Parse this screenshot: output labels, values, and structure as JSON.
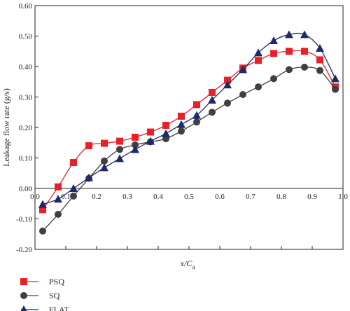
{
  "chart_data": {
    "type": "line",
    "xlabel": "x/C",
    "xlabel_subscript": "a",
    "ylabel": "Leakage flow rate (g/s)",
    "xlim": [
      0.0,
      1.0
    ],
    "ylim": [
      -0.2,
      0.6
    ],
    "xticks": [
      "0.0",
      "0.1",
      "0.2",
      "0.3",
      "0.4",
      "0.5",
      "0.6",
      "0.7",
      "0.8",
      "0.9",
      "1.0"
    ],
    "yticks": [
      "-0.20",
      "-0.10",
      "0.00",
      "0.10",
      "0.20",
      "0.30",
      "0.40",
      "0.50",
      "0.60"
    ],
    "grid": false,
    "legend_position": "bottom-left",
    "series": [
      {
        "name": "PSQ",
        "color": "#e8202a",
        "marker": "square",
        "x": [
          0.025,
          0.075,
          0.125,
          0.175,
          0.225,
          0.275,
          0.325,
          0.375,
          0.425,
          0.475,
          0.525,
          0.575,
          0.625,
          0.675,
          0.725,
          0.775,
          0.825,
          0.875,
          0.925,
          0.975
        ],
        "y": [
          -0.07,
          0.005,
          0.085,
          0.14,
          0.148,
          0.155,
          0.168,
          0.185,
          0.207,
          0.237,
          0.275,
          0.315,
          0.355,
          0.395,
          0.42,
          0.443,
          0.45,
          0.45,
          0.422,
          0.333
        ]
      },
      {
        "name": "SQ",
        "color": "#404040",
        "marker": "circle",
        "x": [
          0.025,
          0.075,
          0.125,
          0.175,
          0.225,
          0.275,
          0.325,
          0.375,
          0.425,
          0.475,
          0.525,
          0.575,
          0.625,
          0.675,
          0.725,
          0.775,
          0.825,
          0.875,
          0.925,
          0.975
        ],
        "y": [
          -0.14,
          -0.085,
          -0.025,
          0.033,
          0.09,
          0.128,
          0.143,
          0.153,
          0.163,
          0.188,
          0.218,
          0.25,
          0.28,
          0.308,
          0.333,
          0.36,
          0.39,
          0.398,
          0.387,
          0.325
        ]
      },
      {
        "name": "FLAT",
        "color": "#1b2a6b",
        "marker": "triangle",
        "x": [
          0.025,
          0.075,
          0.125,
          0.175,
          0.225,
          0.275,
          0.325,
          0.375,
          0.425,
          0.475,
          0.525,
          0.575,
          0.625,
          0.675,
          0.725,
          0.775,
          0.825,
          0.875,
          0.925,
          0.975
        ],
        "y": [
          -0.052,
          -0.035,
          0.0,
          0.035,
          0.068,
          0.098,
          0.128,
          0.155,
          0.18,
          0.21,
          0.24,
          0.29,
          0.34,
          0.39,
          0.445,
          0.485,
          0.505,
          0.505,
          0.46,
          0.36
        ]
      }
    ]
  }
}
